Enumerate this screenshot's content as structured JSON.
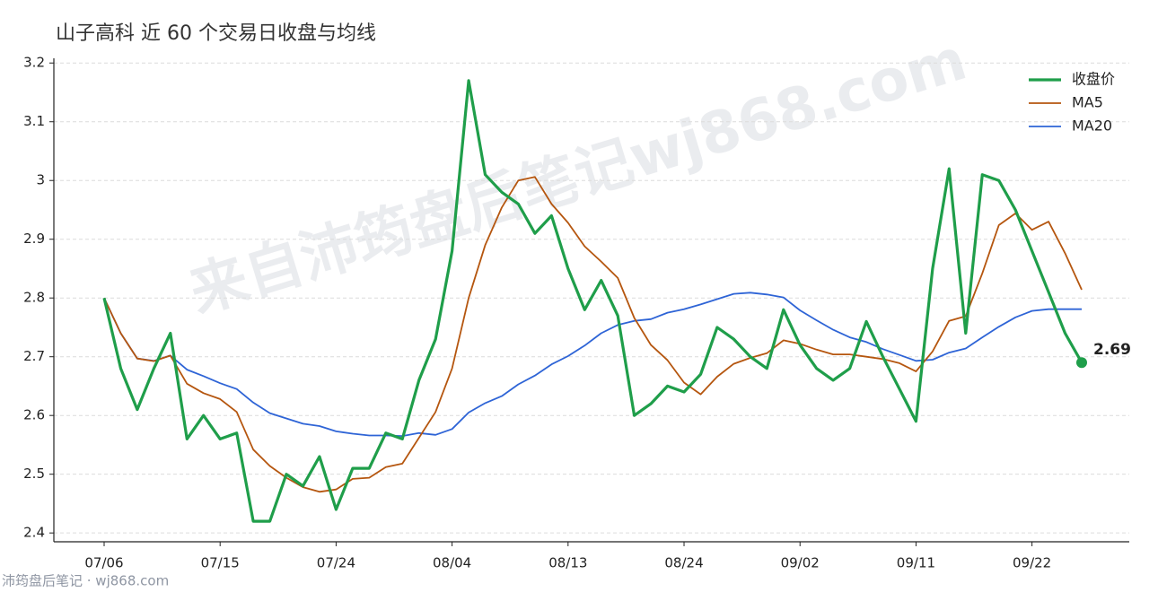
{
  "chart_data": {
    "type": "line",
    "title": "山子高科 近 60 个交易日收盘与均线",
    "categories": [
      "07/06",
      null,
      null,
      null,
      null,
      null,
      null,
      "07/15",
      null,
      null,
      null,
      null,
      null,
      null,
      "07/24",
      null,
      null,
      null,
      null,
      null,
      null,
      "08/04",
      null,
      null,
      null,
      null,
      null,
      null,
      "08/13",
      null,
      null,
      null,
      null,
      null,
      null,
      "08/24",
      null,
      null,
      null,
      null,
      null,
      null,
      "09/02",
      null,
      null,
      null,
      null,
      null,
      null,
      "09/11",
      null,
      null,
      null,
      null,
      null,
      null,
      "09/22",
      null,
      null,
      null
    ],
    "series": [
      {
        "name": "收盘价",
        "color": "#1f9e4a",
        "values": [
          2.8,
          2.68,
          2.61,
          2.68,
          2.74,
          2.56,
          2.6,
          2.56,
          2.57,
          2.42,
          2.42,
          2.5,
          2.48,
          2.53,
          2.44,
          2.51,
          2.51,
          2.57,
          2.56,
          2.66,
          2.73,
          2.88,
          3.17,
          3.01,
          2.98,
          2.96,
          2.91,
          2.94,
          2.85,
          2.78,
          2.83,
          2.77,
          2.6,
          2.62,
          2.65,
          2.64,
          2.67,
          2.75,
          2.73,
          2.7,
          2.68,
          2.78,
          2.72,
          2.68,
          2.66,
          2.68,
          2.76,
          2.7,
          2.645,
          2.59,
          2.85,
          3.02,
          2.74,
          3.01,
          3.0,
          2.95,
          2.88,
          2.81,
          2.74,
          2.69
        ]
      },
      {
        "name": "MA5",
        "color": "#b5560f",
        "values": [
          2.8,
          2.74,
          2.697,
          2.6925,
          2.702,
          2.654,
          2.638,
          2.628,
          2.606,
          2.542,
          2.514,
          2.494,
          2.478,
          2.47,
          2.474,
          2.492,
          2.494,
          2.512,
          2.518,
          2.562,
          2.606,
          2.68,
          2.8,
          2.89,
          2.954,
          3.0,
          3.006,
          2.96,
          2.928,
          2.888,
          2.862,
          2.834,
          2.766,
          2.72,
          2.694,
          2.656,
          2.636,
          2.666,
          2.688,
          2.698,
          2.706,
          2.728,
          2.722,
          2.712,
          2.704,
          2.704,
          2.7,
          2.696,
          2.689,
          2.675,
          2.709,
          2.761,
          2.769,
          2.842,
          2.924,
          2.944,
          2.916,
          2.93,
          2.876,
          2.814
        ]
      },
      {
        "name": "MA20",
        "color": "#2e64d6",
        "values": [
          2.8,
          2.74,
          2.697,
          2.693,
          2.702,
          2.678,
          2.667,
          2.655,
          2.645,
          2.622,
          2.604,
          2.595,
          2.586,
          2.582,
          2.573,
          2.569,
          2.566,
          2.566,
          2.565,
          2.57,
          2.567,
          2.577,
          2.605,
          2.621,
          2.633,
          2.653,
          2.668,
          2.687,
          2.701,
          2.719,
          2.74,
          2.754,
          2.761,
          2.764,
          2.775,
          2.781,
          2.789,
          2.798,
          2.807,
          2.809,
          2.806,
          2.801,
          2.779,
          2.762,
          2.746,
          2.733,
          2.725,
          2.713,
          2.703,
          2.693,
          2.695,
          2.707,
          2.714,
          2.733,
          2.751,
          2.767,
          2.778,
          2.781,
          2.781,
          2.781
        ]
      }
    ],
    "ylim": [
      2.385,
      3.208
    ],
    "yticks": [
      2.4,
      2.5,
      2.6,
      2.7,
      2.8,
      2.9,
      3.0,
      3.1,
      3.2
    ],
    "grid": true,
    "legend": "upper-right"
  },
  "watermark": "来自沛筠盘后笔记wj868.com",
  "footer": "沛筠盘后笔记 · wj868.com"
}
